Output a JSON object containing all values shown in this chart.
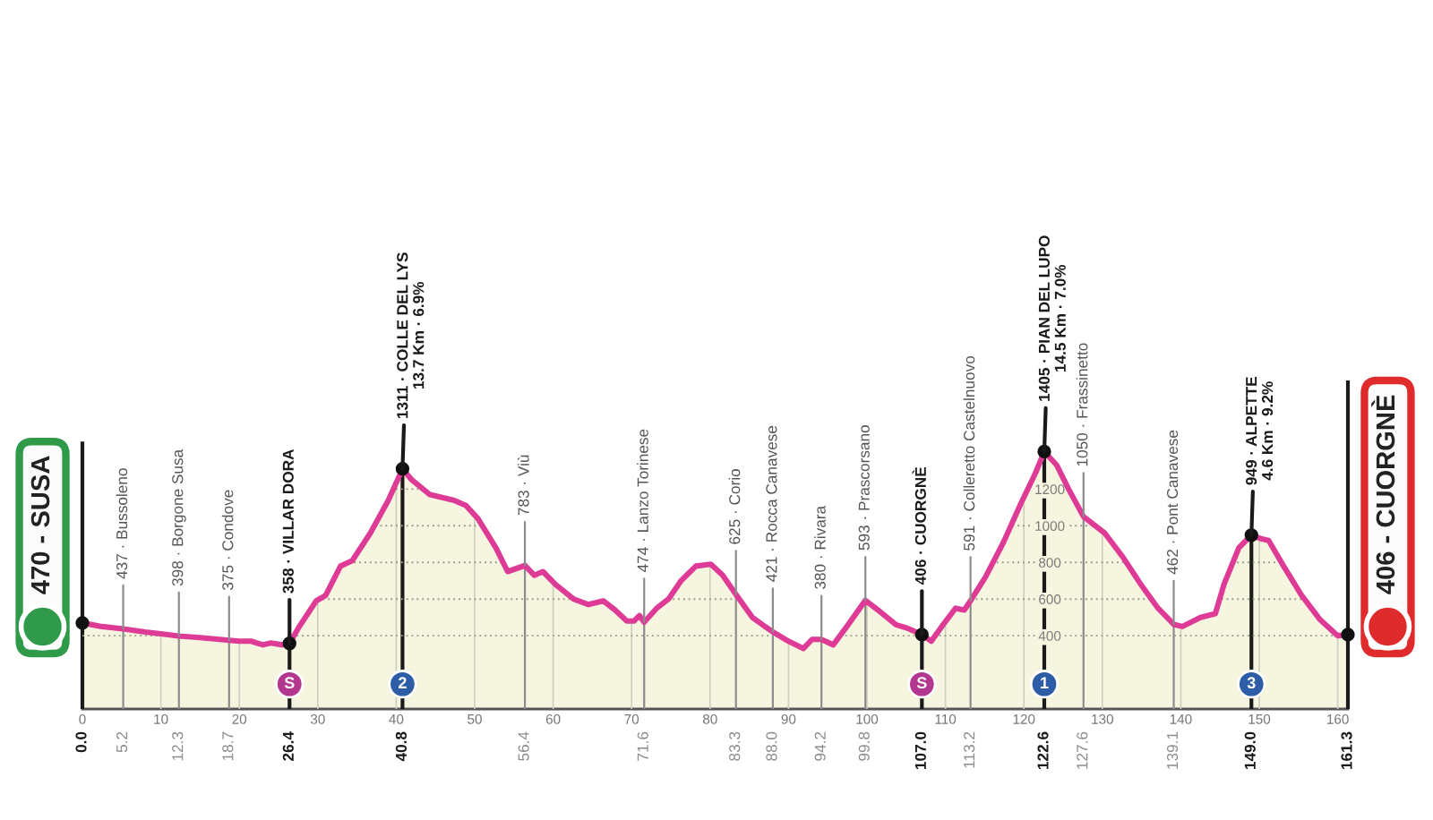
{
  "chart_data": {
    "type": "area",
    "color": "#dd3b95",
    "x": [
      0,
      2.5,
      5.2,
      8,
      10,
      12.3,
      15,
      17.5,
      18.7,
      20,
      21.5,
      23,
      24,
      25.5,
      26.4,
      27.5,
      29.8,
      31,
      32.9,
      34.4,
      36.7,
      39,
      40.8,
      42,
      44.3,
      47.3,
      48.9,
      50.4,
      52.7,
      54.2,
      56.4,
      57.6,
      58.7,
      60.3,
      62.6,
      64.5,
      66.4,
      67.9,
      69.4,
      70.3,
      71,
      71.6,
      73.2,
      74.7,
      76.3,
      78.2,
      80.1,
      81.6,
      83.3,
      85.4,
      87,
      88,
      90,
      91.9,
      93,
      94.2,
      95.7,
      97.6,
      99.8,
      101.4,
      103.7,
      105.2,
      107,
      108.2,
      109.7,
      111.3,
      112.4,
      113.2,
      115.1,
      117.4,
      119.6,
      121.5,
      122.6,
      124.2,
      125.7,
      127.6,
      130.3,
      132.6,
      134.9,
      137.1,
      139.1,
      140.2,
      142.5,
      144.4,
      145.5,
      147.4,
      149,
      150.2,
      151.2,
      153.1,
      155.4,
      157.7,
      160,
      161.3
    ],
    "values": [
      470,
      450,
      437,
      420,
      410,
      398,
      390,
      380,
      375,
      370,
      370,
      350,
      360,
      350,
      358,
      440,
      590,
      620,
      780,
      810,
      960,
      1140,
      1311,
      1250,
      1170,
      1140,
      1110,
      1040,
      880,
      750,
      783,
      730,
      750,
      680,
      600,
      570,
      590,
      540,
      480,
      480,
      510,
      474,
      550,
      600,
      700,
      780,
      790,
      730,
      625,
      500,
      450,
      421,
      370,
      330,
      380,
      380,
      350,
      460,
      593,
      540,
      460,
      440,
      406,
      370,
      460,
      550,
      540,
      591,
      720,
      910,
      1120,
      1290,
      1405,
      1330,
      1200,
      1050,
      960,
      830,
      680,
      550,
      462,
      450,
      500,
      520,
      680,
      880,
      949,
      930,
      920,
      780,
      620,
      490,
      400,
      406
    ],
    "xlim": [
      0,
      161.3
    ],
    "ylim": [
      0,
      3000
    ],
    "xticks": [
      0,
      10,
      20,
      30,
      40,
      50,
      60,
      70,
      80,
      90,
      100,
      110,
      120,
      130,
      140,
      150,
      160
    ],
    "yticks": [
      400,
      600,
      800,
      1000,
      1200
    ],
    "grid": true,
    "ref_lines": [
      {
        "axis": "x",
        "value": 0,
        "label": "0.0",
        "color": "#1a1a1a"
      },
      {
        "axis": "x",
        "value": 5.2,
        "label": "5.2",
        "color": "#8c8c8c"
      },
      {
        "axis": "x",
        "value": 12.3,
        "label": "12.3",
        "color": "#8c8c8c"
      },
      {
        "axis": "x",
        "value": 18.7,
        "label": "18.7",
        "color": "#8c8c8c"
      },
      {
        "axis": "x",
        "value": 26.4,
        "label": "26.4",
        "color": "#1a1a1a"
      },
      {
        "axis": "x",
        "value": 40.8,
        "label": "40.8",
        "color": "#1a1a1a"
      },
      {
        "axis": "x",
        "value": 56.4,
        "label": "56.4",
        "color": "#8c8c8c"
      },
      {
        "axis": "x",
        "value": 71.6,
        "label": "71.6",
        "color": "#8c8c8c"
      },
      {
        "axis": "x",
        "value": 83.3,
        "label": "83.3",
        "color": "#8c8c8c"
      },
      {
        "axis": "x",
        "value": 88.0,
        "label": "88.0",
        "color": "#8c8c8c"
      },
      {
        "axis": "x",
        "value": 94.2,
        "label": "94.2",
        "color": "#8c8c8c"
      },
      {
        "axis": "x",
        "value": 99.8,
        "label": "99.8",
        "color": "#8c8c8c"
      },
      {
        "axis": "x",
        "value": 107.0,
        "label": "107.0",
        "color": "#1a1a1a"
      },
      {
        "axis": "x",
        "value": 113.2,
        "label": "113.2",
        "color": "#8c8c8c"
      },
      {
        "axis": "x",
        "value": 122.6,
        "label": "122.6",
        "color": "#1a1a1a"
      },
      {
        "axis": "x",
        "value": 127.6,
        "label": "127.6",
        "color": "#8c8c8c"
      },
      {
        "axis": "x",
        "value": 139.1,
        "label": "139.1",
        "color": "#8c8c8c"
      },
      {
        "axis": "x",
        "value": 149.0,
        "label": "149.0",
        "color": "#1a1a1a"
      },
      {
        "axis": "x",
        "value": 161.3,
        "label": "161.3",
        "color": "#1a1a1a"
      }
    ],
    "annotations": [
      {
        "text": "470 - SUSA",
        "x": 0,
        "y": 470
      },
      {
        "text": "437 · Bussoleno",
        "x": 5.2,
        "y": 437
      },
      {
        "text": "398 · Borgone Susa",
        "x": 12.3,
        "y": 398
      },
      {
        "text": "375 · Condove",
        "x": 18.7,
        "y": 375
      },
      {
        "text": "358 · VILLAR DORA",
        "x": 26.4,
        "y": 358
      },
      {
        "text": "1311 · COLLE DEL LYS\n13.7 Km · 6.9%",
        "x": 40.8,
        "y": 1311
      },
      {
        "text": "783 · Viù",
        "x": 56.4,
        "y": 783
      },
      {
        "text": "474 · Lanzo Torinese",
        "x": 71.6,
        "y": 474
      },
      {
        "text": "625 · Corio",
        "x": 83.3,
        "y": 625
      },
      {
        "text": "421 · Rocca Canavese",
        "x": 88.0,
        "y": 421
      },
      {
        "text": "380 · Rivara",
        "x": 94.2,
        "y": 380
      },
      {
        "text": "593 · Prascorsano",
        "x": 99.8,
        "y": 593
      },
      {
        "text": "406 · CUORGNÈ",
        "x": 107.0,
        "y": 406
      },
      {
        "text": "591 · Colleretto Castelnuovo",
        "x": 113.2,
        "y": 591
      },
      {
        "text": "1405 · PIAN DEL LUPO\n14.5 Km · 7.0%",
        "x": 122.6,
        "y": 1405
      },
      {
        "text": "1050 · Frassinetto",
        "x": 127.6,
        "y": 1050
      },
      {
        "text": "462 · Pont Canavese",
        "x": 139.1,
        "y": 462
      },
      {
        "text": "949 · ALPETTE\n4.6 Km · 9.2%",
        "x": 149.0,
        "y": 949
      },
      {
        "text": "406 - CUORGNÈ",
        "x": 161.3,
        "y": 406
      },
      {
        "text": "S",
        "x": 26.4
      },
      {
        "text": "2",
        "x": 40.8
      },
      {
        "text": "S",
        "x": 107.0
      },
      {
        "text": "1",
        "x": 122.6
      },
      {
        "text": "3",
        "x": 149.0
      }
    ]
  }
}
